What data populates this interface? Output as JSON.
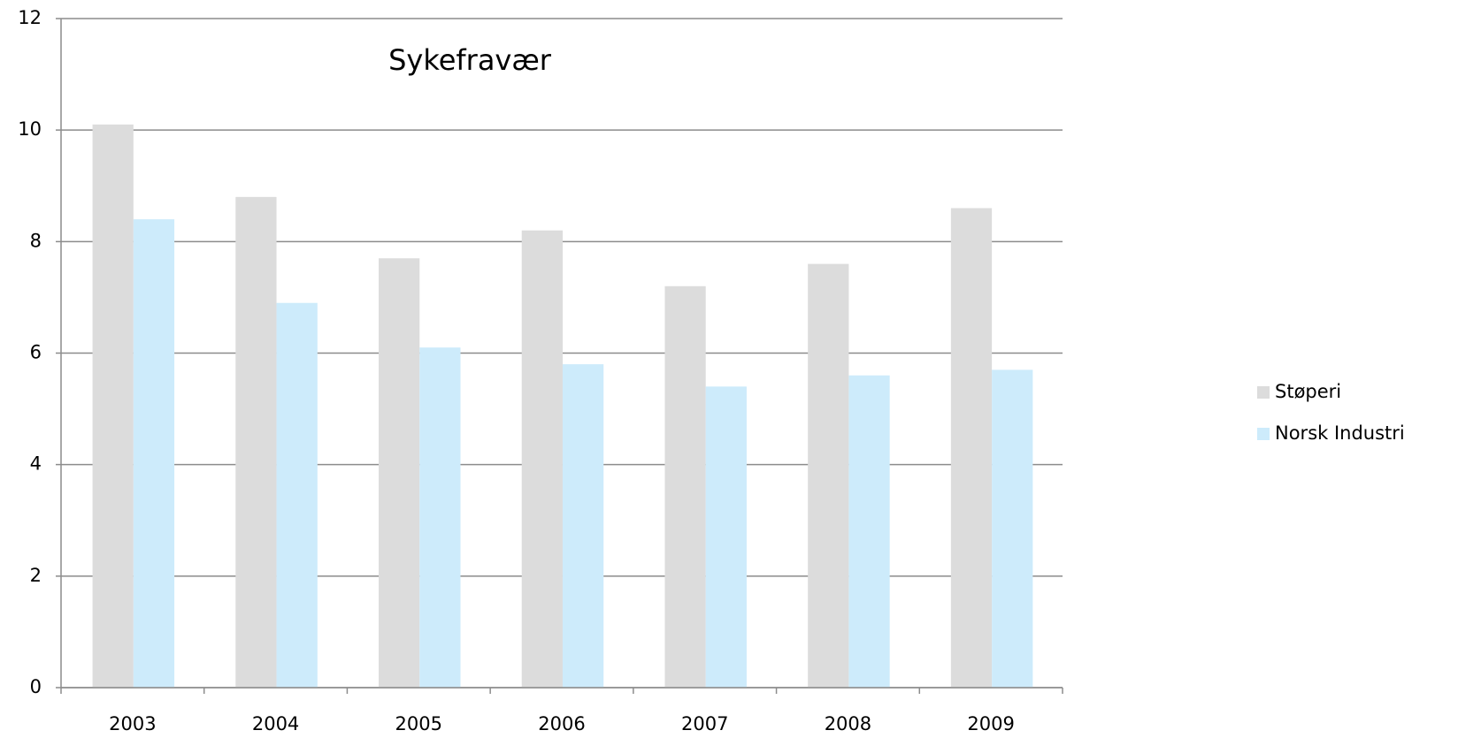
{
  "chart_data": {
    "type": "bar",
    "title": "Sykefravær",
    "categories": [
      "2003",
      "2004",
      "2005",
      "2006",
      "2007",
      "2008",
      "2009"
    ],
    "series": [
      {
        "name": "Støperi",
        "color": "#dcdcdc",
        "values": [
          10.1,
          8.8,
          7.7,
          8.2,
          7.2,
          7.6,
          8.6
        ]
      },
      {
        "name": "Norsk Industri",
        "color": "#cdebfb",
        "values": [
          8.4,
          6.9,
          6.1,
          5.8,
          5.4,
          5.6,
          5.7
        ]
      }
    ],
    "ylim": [
      0,
      12
    ],
    "yticks": [
      0,
      2,
      4,
      6,
      8,
      10,
      12
    ],
    "grid": true,
    "legend": "right"
  }
}
